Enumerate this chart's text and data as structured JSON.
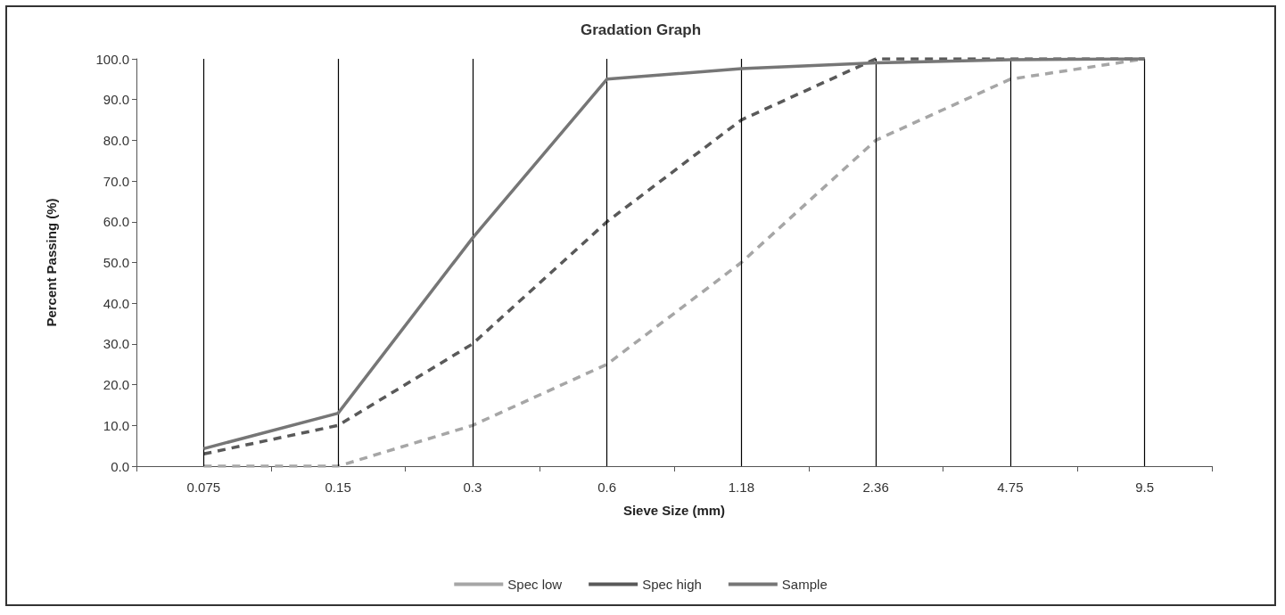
{
  "chart_data": {
    "type": "line",
    "title": "Gradation Graph",
    "xlabel": "Sieve Size (mm)",
    "ylabel": "Percent Passing (%)",
    "categories": [
      "0.075",
      "0.15",
      "0.3",
      "0.6",
      "1.18",
      "2.36",
      "4.75",
      "9.5"
    ],
    "series": [
      {
        "name": "Spec low",
        "color": "#a6a6a6",
        "line_style": "dashed",
        "values": [
          0,
          0,
          10,
          25,
          50,
          80,
          95,
          100
        ]
      },
      {
        "name": "Spec high",
        "color": "#595959",
        "line_style": "dashed",
        "values": [
          3,
          10,
          30,
          60,
          85,
          100,
          100,
          100
        ]
      },
      {
        "name": "Sample",
        "color": "#767676",
        "line_style": "solid",
        "values": [
          4.3,
          13,
          56,
          95,
          97.6,
          99,
          99.8,
          100
        ]
      }
    ],
    "ylim": [
      0,
      100
    ],
    "yticks": [
      {
        "value": 0,
        "label": "0.0"
      },
      {
        "value": 10,
        "label": "10.0"
      },
      {
        "value": 20,
        "label": "20.0"
      },
      {
        "value": 30,
        "label": "30.0"
      },
      {
        "value": 40,
        "label": "40.0"
      },
      {
        "value": 50,
        "label": "50.0"
      },
      {
        "value": 60,
        "label": "60.0"
      },
      {
        "value": 70,
        "label": "70.0"
      },
      {
        "value": 80,
        "label": "80.0"
      },
      {
        "value": 90,
        "label": "90.0"
      },
      {
        "value": 100,
        "label": "100.0"
      }
    ],
    "grid": "x",
    "legend": "bottom",
    "marker": "none"
  }
}
